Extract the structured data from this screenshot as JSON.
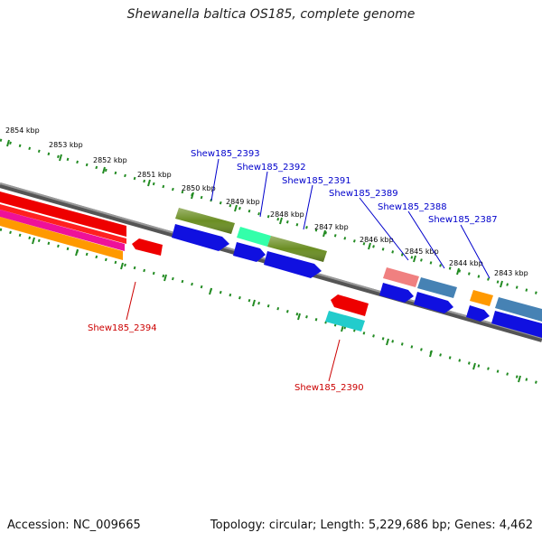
{
  "title": "Shewanella baltica OS185, complete genome",
  "footer": {
    "accession": "Accession: NC_009665",
    "info": "Topology: circular; Length: 5,229,686 bp; Genes: 4,462"
  },
  "scale_unit": "kbp",
  "ticks": [
    {
      "kbp": 2854,
      "label": "2854 kbp"
    },
    {
      "kbp": 2853,
      "label": "2853 kbp"
    },
    {
      "kbp": 2852,
      "label": "2852 kbp"
    },
    {
      "kbp": 2851,
      "label": "2851 kbp"
    },
    {
      "kbp": 2850,
      "label": "2850 kbp"
    },
    {
      "kbp": 2849,
      "label": "2849 kbp"
    },
    {
      "kbp": 2848,
      "label": "2848 kbp"
    },
    {
      "kbp": 2847,
      "label": "2847 kbp"
    },
    {
      "kbp": 2846,
      "label": "2846 kbp"
    },
    {
      "kbp": 2845,
      "label": "2845 kbp"
    },
    {
      "kbp": 2844,
      "label": "2844 kbp"
    },
    {
      "kbp": 2843,
      "label": "2843 kbp"
    }
  ],
  "gene_labels": [
    {
      "name": "Shew185_2393",
      "strand": "forward",
      "color": "#0000cc"
    },
    {
      "name": "Shew185_2392",
      "strand": "forward",
      "color": "#0000cc"
    },
    {
      "name": "Shew185_2391",
      "strand": "forward",
      "color": "#0000cc"
    },
    {
      "name": "Shew185_2389",
      "strand": "forward",
      "color": "#0000cc"
    },
    {
      "name": "Shew185_2388",
      "strand": "forward",
      "color": "#0000cc"
    },
    {
      "name": "Shew185_2387",
      "strand": "forward",
      "color": "#0000cc"
    },
    {
      "name": "Shew185_2394",
      "strand": "reverse",
      "color": "#cc0000"
    },
    {
      "name": "Shew185_2390",
      "strand": "reverse",
      "color": "#cc0000"
    }
  ],
  "colors": {
    "backbone": "#808080",
    "tick": "#228b22",
    "forward_cds": "#1010e0",
    "reverse_cds": "#ee0000",
    "olive": "#6b8e23",
    "aquamarine": "#33ffaa",
    "cyan": "#22cccc",
    "salmon": "#f08080",
    "steelblue": "#4682b4",
    "orange": "#ff9900",
    "magenta": "#ee1199"
  }
}
